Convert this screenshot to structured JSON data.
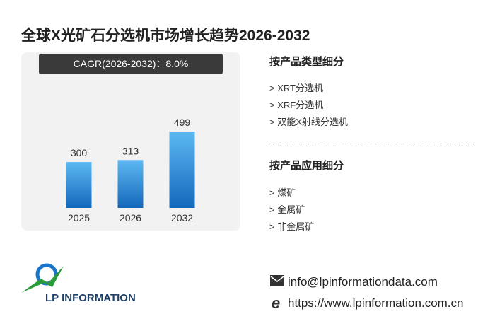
{
  "title": "全球X光矿石分选机市场增长趋势2026-2032",
  "chart_data": {
    "type": "bar",
    "subtitle": "CAGR(2026-2032)：8.0%",
    "categories": [
      "2025",
      "2026",
      "2032"
    ],
    "values": [
      300,
      313,
      499
    ]
  },
  "segments": [
    {
      "title": "按产品类型细分",
      "items": [
        "> XRT分选机",
        "> XRF分选机",
        "> 双能X射线分选机"
      ]
    },
    {
      "title": "按产品应用细分",
      "items": [
        "> 煤矿",
        "> 金属矿",
        "> 非金属矿"
      ]
    }
  ],
  "contact": {
    "email": "info@lpinformationdata.com",
    "website": "https://www.lpinformation.com.cn"
  },
  "logo": "LP INFORMATION"
}
